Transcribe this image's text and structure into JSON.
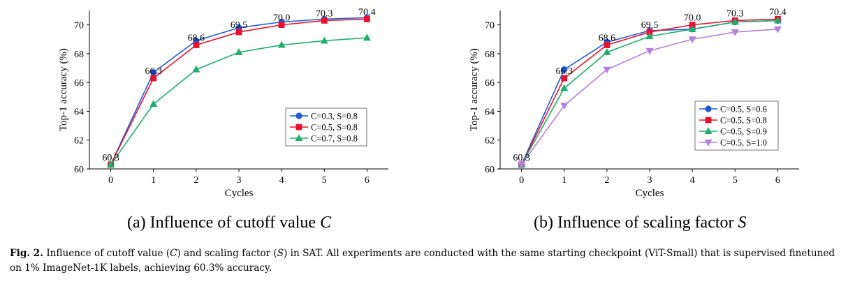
{
  "chart_data": [
    {
      "type": "line",
      "xlabel": "Cycles",
      "ylabel": "Top-1 accuracy (%)",
      "x": [
        0,
        1,
        2,
        3,
        4,
        5,
        6
      ],
      "xticks": [
        "0",
        "1",
        "2",
        "3",
        "4",
        "5",
        "6"
      ],
      "yticks": [
        "60",
        "62",
        "64",
        "66",
        "68",
        "70"
      ],
      "ylim": [
        60,
        71
      ],
      "legend_position": "center-right",
      "series": [
        {
          "name": "C=0.3, S=0.8",
          "color": "#1f5bd6",
          "marker": "circle",
          "values": [
            60.3,
            66.7,
            68.9,
            69.8,
            70.2,
            70.4,
            70.5
          ]
        },
        {
          "name": "C=0.5, S=0.8",
          "color": "#e8112d",
          "marker": "square",
          "values": [
            60.3,
            66.3,
            68.6,
            69.5,
            70.0,
            70.3,
            70.4
          ]
        },
        {
          "name": "C=0.7, S=0.8",
          "color": "#1fae6c",
          "marker": "triangle-up",
          "values": [
            60.3,
            64.5,
            66.9,
            68.1,
            68.6,
            68.9,
            69.1
          ]
        }
      ],
      "data_labels": [
        {
          "x": 0,
          "y": 60.3,
          "text": "60.3"
        },
        {
          "x": 1,
          "y": 66.3,
          "text": "66.3"
        },
        {
          "x": 2,
          "y": 68.6,
          "text": "68.6"
        },
        {
          "x": 3,
          "y": 69.5,
          "text": "69.5"
        },
        {
          "x": 4,
          "y": 70.0,
          "text": "70.0"
        },
        {
          "x": 5,
          "y": 70.3,
          "text": "70.3"
        },
        {
          "x": 6,
          "y": 70.4,
          "text": "70.4"
        }
      ]
    },
    {
      "type": "line",
      "xlabel": "Cycles",
      "ylabel": "Top-1 accuracy (%)",
      "x": [
        0,
        1,
        2,
        3,
        4,
        5,
        6
      ],
      "xticks": [
        "0",
        "1",
        "2",
        "3",
        "4",
        "5",
        "6"
      ],
      "yticks": [
        "60",
        "62",
        "64",
        "66",
        "68",
        "70"
      ],
      "ylim": [
        60,
        71
      ],
      "legend_position": "center-right",
      "series": [
        {
          "name": "C=0.5, S=0.6",
          "color": "#1f5bd6",
          "marker": "circle",
          "values": [
            60.3,
            66.9,
            68.8,
            69.6,
            69.7,
            70.2,
            70.3
          ]
        },
        {
          "name": "C=0.5, S=0.8",
          "color": "#e8112d",
          "marker": "square",
          "values": [
            60.3,
            66.3,
            68.6,
            69.5,
            70.0,
            70.3,
            70.4
          ]
        },
        {
          "name": "C=0.5, S=0.9",
          "color": "#1fae6c",
          "marker": "triangle-up",
          "values": [
            60.3,
            65.6,
            68.1,
            69.2,
            69.7,
            70.2,
            70.3
          ]
        },
        {
          "name": "C=0.5, S=1.0",
          "color": "#b57fe0",
          "marker": "triangle-down",
          "values": [
            60.3,
            64.4,
            66.9,
            68.2,
            69.0,
            69.5,
            69.7
          ]
        }
      ],
      "data_labels": [
        {
          "x": 0,
          "y": 60.3,
          "text": "60.3"
        },
        {
          "x": 1,
          "y": 66.3,
          "text": "66.3"
        },
        {
          "x": 2,
          "y": 68.6,
          "text": "68.6"
        },
        {
          "x": 3,
          "y": 69.5,
          "text": "69.5"
        },
        {
          "x": 4,
          "y": 70.0,
          "text": "70.0"
        },
        {
          "x": 5,
          "y": 70.3,
          "text": "70.3"
        },
        {
          "x": 6,
          "y": 70.4,
          "text": "70.4"
        }
      ]
    }
  ],
  "subcaptions": {
    "a": {
      "prefix": "(a) Influence of cutoff value ",
      "var": "C"
    },
    "b": {
      "prefix": "(b) Influence of scaling factor ",
      "var": "S"
    }
  },
  "caption": {
    "label": "Fig. 2.",
    "part1": "Influence of cutoff value (",
    "var1": "C",
    "part2": ") and scaling factor (",
    "var2": "S",
    "part3": ") in SAT. All experiments are conducted with the same starting checkpoint (ViT-Small) that is supervised finetuned on 1% ImageNet-1K labels, achieving 60.3% accuracy."
  }
}
